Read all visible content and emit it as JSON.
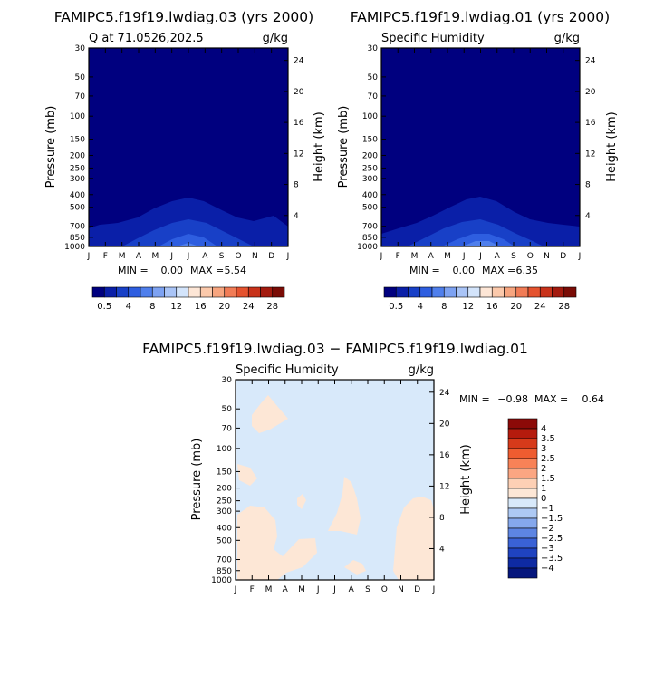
{
  "page": {
    "title_left": "FAMIPC5.f19f19.lwdiag.03 (yrs 2000)",
    "title_right": "FAMIPC5.f19f19.lwdiag.01 (yrs 2000)",
    "title_diff": "FAMIPC5.f19f19.lwdiag.03 − FAMIPC5.f19f19.lwdiag.01"
  },
  "chart_data": [
    {
      "type": "heatmap",
      "title_left": "Q at 71.0526,202.5",
      "title_right": "g/kg",
      "ylabel": "Pressure (mb)",
      "ylabel_right": "Height (km)",
      "x_ticks": [
        "J",
        "F",
        "M",
        "A",
        "M",
        "J",
        "J",
        "A",
        "S",
        "O",
        "N",
        "D",
        "J"
      ],
      "y_ticks": [
        "30",
        "50",
        "70",
        "100",
        "150",
        "200",
        "250",
        "300",
        "400",
        "500",
        "700",
        "850",
        "1000"
      ],
      "y2_ticks": [
        "24",
        "20",
        "16",
        "12",
        "8",
        "4"
      ],
      "min_label": "MIN =",
      "min_value": "0.00",
      "max_label": "MAX =",
      "max_value": "5.54",
      "colorbar_labels": [
        "0.5",
        "4",
        "8",
        "12",
        "16",
        "20",
        "24",
        "28"
      ]
    },
    {
      "type": "heatmap",
      "title_left": "Specific Humidity",
      "title_right": "g/kg",
      "ylabel": "Pressure (mb)",
      "ylabel_right": "Height (km)",
      "x_ticks": [
        "J",
        "F",
        "M",
        "A",
        "M",
        "J",
        "J",
        "A",
        "S",
        "O",
        "N",
        "D",
        "J"
      ],
      "y_ticks": [
        "30",
        "50",
        "70",
        "100",
        "150",
        "200",
        "250",
        "300",
        "400",
        "500",
        "700",
        "850",
        "1000"
      ],
      "y2_ticks": [
        "24",
        "20",
        "16",
        "12",
        "8",
        "4"
      ],
      "min_label": "MIN =",
      "min_value": "0.00",
      "max_label": "MAX =",
      "max_value": "6.35",
      "colorbar_labels": [
        "0.5",
        "4",
        "8",
        "12",
        "16",
        "20",
        "24",
        "28"
      ]
    },
    {
      "type": "heatmap",
      "title_left": "Specific Humidity",
      "title_right": "g/kg",
      "ylabel": "Pressure (mb)",
      "ylabel_right": "Height (km)",
      "x_ticks": [
        "J",
        "F",
        "M",
        "A",
        "M",
        "J",
        "J",
        "A",
        "S",
        "O",
        "N",
        "D",
        "J"
      ],
      "y_ticks": [
        "30",
        "50",
        "70",
        "100",
        "150",
        "200",
        "250",
        "300",
        "400",
        "500",
        "700",
        "850",
        "1000"
      ],
      "y2_ticks": [
        "24",
        "20",
        "16",
        "12",
        "8",
        "4"
      ],
      "min_label": "MIN =",
      "min_value": "−0.98",
      "max_label": "MAX =",
      "max_value": "0.64",
      "colorbar_labels": [
        "4",
        "3.5",
        "3",
        "2.5",
        "2",
        "1.5",
        "1",
        "0",
        "−1",
        "−1.5",
        "−2",
        "−2.5",
        "−3",
        "−3.5",
        "−4"
      ]
    }
  ],
  "colors": {
    "abs_scale": [
      "#00007f",
      "#0a1fa8",
      "#1840c7",
      "#2e5ee0",
      "#4f7fec",
      "#7da2f2",
      "#a9c4f7",
      "#d3e4fb",
      "#fde6d6",
      "#fbc9ab",
      "#f7a57f",
      "#f17c56",
      "#e5532f",
      "#c8321a",
      "#a31a0e",
      "#7a0c06"
    ],
    "diff_scale": [
      "#8c0a08",
      "#b51b0d",
      "#d63a1a",
      "#ee5c30",
      "#f88257",
      "#fba682",
      "#fdd0b5",
      "#fde7d6",
      "#d8e9fa",
      "#adc9f4",
      "#85a8ed",
      "#5d85e3",
      "#3a62d6",
      "#1f43c0",
      "#0e2aa2",
      "#05167c"
    ],
    "abs_bg": "#00007f",
    "abs_band1": "#0a1fa8",
    "abs_band2": "#1840c7",
    "abs_band3": "#2e5ee0",
    "abs_band4": "#4f7fec",
    "diff_bg": "#d8e9fa",
    "diff_pos": "#fde7d6"
  }
}
